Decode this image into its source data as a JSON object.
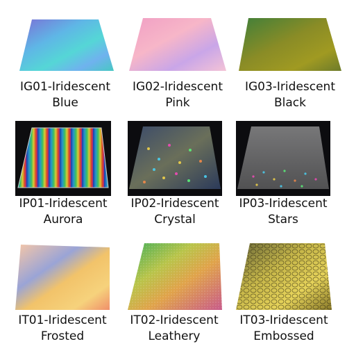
{
  "products": [
    {
      "line1": "IG01-Iridescent",
      "line2": "Blue"
    },
    {
      "line1": "IG02-Iridescent",
      "line2": "Pink"
    },
    {
      "line1": "IG03-Iridescent",
      "line2": "Black"
    },
    {
      "line1": "IP01-Iridescent",
      "line2": "Aurora"
    },
    {
      "line1": "IP02-Iridescent",
      "line2": "Crystal"
    },
    {
      "line1": "IP03-Iridescent",
      "line2": "Stars"
    },
    {
      "line1": "IT01-Iridescent",
      "line2": "Frosted"
    },
    {
      "line1": "IT02-Iridescent",
      "line2": "Leathery"
    },
    {
      "line1": "IT03-Iridescent",
      "line2": "Embossed"
    }
  ]
}
